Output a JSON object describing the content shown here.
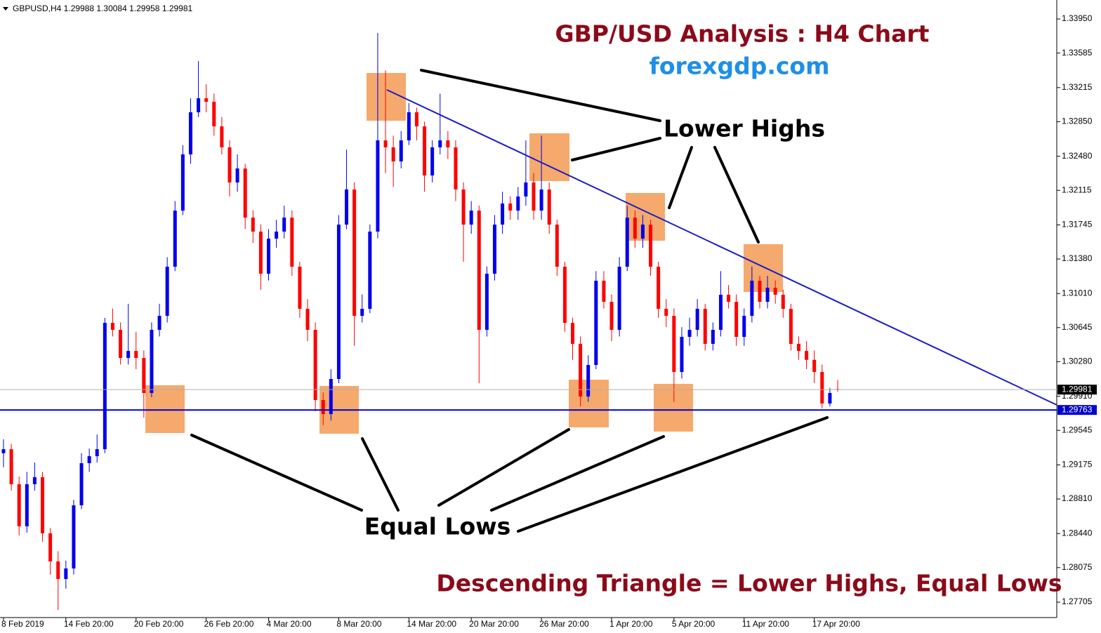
{
  "chart_data": {
    "type": "candlestick",
    "header": "GBPUSD,H4  1.29988 1.30084 1.29958 1.29981",
    "title": "GBP/USD Analysis : H4 Chart",
    "subtitle": "forexgdp.com",
    "annotations": [
      "Lower Highs",
      "Equal Lows",
      "Descending Triangle = Lower Highs, Equal Lows"
    ],
    "up_color": "#0000ee",
    "down_color": "#ff0000",
    "categories": [
      "8 Feb 2019",
      null,
      null,
      null,
      null,
      null,
      null,
      null,
      "14 Feb 20:00",
      null,
      null,
      null,
      null,
      null,
      null,
      null,
      null,
      "20 Feb 20:00",
      null,
      null,
      null,
      null,
      null,
      null,
      null,
      null,
      "26 Feb 20:00",
      null,
      null,
      null,
      null,
      null,
      null,
      null,
      "4 Mar 20:00",
      null,
      null,
      null,
      null,
      null,
      null,
      null,
      null,
      "8 Mar 20:00",
      null,
      null,
      null,
      null,
      null,
      null,
      null,
      null,
      "14 Mar 20:00",
      null,
      null,
      null,
      null,
      null,
      null,
      null,
      "20 Mar 20:00",
      null,
      null,
      null,
      null,
      null,
      null,
      null,
      null,
      "26 Mar 20:00",
      null,
      null,
      null,
      null,
      null,
      null,
      null,
      null,
      "1 Apr 20:00",
      null,
      null,
      null,
      null,
      null,
      null,
      null,
      "5 Apr 20:00",
      null,
      null,
      null,
      null,
      null,
      null,
      null,
      null,
      "11 Apr 20:00",
      null,
      null,
      null,
      null,
      null,
      null,
      null,
      null,
      "17 Apr 20:00",
      null,
      null,
      null
    ],
    "open": [
      1.293,
      1.29343,
      1.28968,
      1.28517,
      1.28968,
      1.29043,
      1.28442,
      1.28141,
      1.27953,
      1.28066,
      1.28742,
      1.29193,
      1.29268,
      1.29343,
      1.30696,
      1.30621,
      1.3032,
      1.30395,
      1.3032,
      1.29945,
      1.30621,
      1.30771,
      1.31297,
      1.31898,
      1.325,
      1.32951,
      1.33101,
      1.33063,
      1.328,
      1.32575,
      1.32199,
      1.32349,
      1.31823,
      1.31673,
      1.31222,
      1.31598,
      1.31673,
      1.31823,
      1.31297,
      1.30846,
      1.30621,
      1.29869,
      1.29719,
      1.30095,
      1.31748,
      1.32124,
      1.30771,
      1.30846,
      1.31673,
      1.3265,
      1.32575,
      1.32424,
      1.3265,
      1.32951,
      1.328,
      1.32274,
      1.32575,
      1.3265,
      1.32575,
      1.32124,
      1.31748,
      1.31898,
      1.30621,
      1.31222,
      1.31748,
      1.31974,
      1.31898,
      1.32049,
      1.32199,
      1.31898,
      1.32124,
      1.31748,
      1.31297,
      1.30696,
      1.30471,
      1.29907,
      1.30245,
      1.31147,
      1.30921,
      1.30621,
      1.31297,
      1.31823,
      1.31598,
      1.31748,
      1.31297,
      1.30846,
      1.30771,
      1.3017,
      1.30546,
      1.30621,
      1.30846,
      1.30471,
      1.30621,
      1.30997,
      1.30921,
      1.30546,
      1.30771,
      1.31147,
      1.30921,
      1.31072,
      1.30997,
      1.30846,
      1.30471,
      1.30395,
      1.303,
      1.3017,
      1.29832,
      1.29988
    ],
    "high": [
      1.2945,
      1.294,
      1.2905,
      1.291,
      1.292,
      1.291,
      1.285,
      1.2825,
      1.2815,
      1.288,
      1.293,
      1.2935,
      1.295,
      1.3075,
      1.3085,
      1.307,
      1.309,
      1.306,
      1.304,
      1.307,
      1.309,
      1.314,
      1.32,
      1.326,
      1.331,
      1.335,
      1.3325,
      1.3315,
      1.329,
      1.3265,
      1.325,
      1.324,
      1.319,
      1.3175,
      1.317,
      1.318,
      1.3195,
      1.319,
      1.3135,
      1.3095,
      1.307,
      1.2995,
      1.302,
      1.3185,
      1.3255,
      1.322,
      1.31,
      1.3175,
      1.338,
      1.334,
      1.327,
      1.3275,
      1.3305,
      1.33,
      1.3285,
      1.3265,
      1.3315,
      1.3275,
      1.3265,
      1.322,
      1.32,
      1.3195,
      1.313,
      1.3185,
      1.321,
      1.3205,
      1.3215,
      1.3265,
      1.323,
      1.327,
      1.322,
      1.318,
      1.3135,
      1.3075,
      1.3055,
      1.3035,
      1.3125,
      1.3125,
      1.31,
      1.314,
      1.3195,
      1.319,
      1.3185,
      1.318,
      1.3135,
      1.3095,
      1.3085,
      1.3065,
      1.3075,
      1.3095,
      1.309,
      1.307,
      1.3125,
      1.311,
      1.31,
      1.3085,
      1.313,
      1.312,
      1.312,
      1.3115,
      1.3105,
      1.309,
      1.3055,
      1.305,
      1.304,
      1.3025,
      1.3,
      1.30084
    ],
    "low": [
      1.2915,
      1.289,
      1.2842,
      1.2845,
      1.289,
      1.2835,
      1.28,
      1.2762,
      1.2785,
      1.28,
      1.287,
      1.291,
      1.292,
      1.293,
      1.3055,
      1.3025,
      1.3025,
      1.302,
      1.2968,
      1.299,
      1.3055,
      1.307,
      1.3125,
      1.3185,
      1.324,
      1.329,
      1.3295,
      1.327,
      1.325,
      1.3205,
      1.321,
      1.317,
      1.3155,
      1.3105,
      1.3115,
      1.315,
      1.316,
      1.312,
      1.3075,
      1.305,
      1.2975,
      1.296,
      1.2965,
      1.3005,
      1.317,
      1.3045,
      1.307,
      1.308,
      1.316,
      1.323,
      1.3215,
      1.3235,
      1.326,
      1.3265,
      1.321,
      1.322,
      1.325,
      1.3245,
      1.32,
      1.3135,
      1.3165,
      1.3005,
      1.3055,
      1.3115,
      1.3165,
      1.318,
      1.318,
      1.3195,
      1.318,
      1.318,
      1.3165,
      1.312,
      1.306,
      1.303,
      1.298,
      1.2985,
      1.302,
      1.3085,
      1.305,
      1.3055,
      1.3125,
      1.315,
      1.315,
      1.312,
      1.3075,
      1.3065,
      1.2985,
      1.301,
      1.3045,
      1.3055,
      1.304,
      1.304,
      1.3055,
      1.3085,
      1.3045,
      1.3045,
      1.307,
      1.3085,
      1.3085,
      1.309,
      1.3075,
      1.304,
      1.303,
      1.302,
      1.3005,
      1.2978,
      1.298,
      1.29958
    ],
    "close": [
      1.29343,
      1.28968,
      1.28517,
      1.28968,
      1.29043,
      1.28442,
      1.28141,
      1.27953,
      1.28066,
      1.28742,
      1.29193,
      1.29268,
      1.29343,
      1.30696,
      1.30621,
      1.3032,
      1.30395,
      1.3032,
      1.29945,
      1.30621,
      1.30771,
      1.31297,
      1.31898,
      1.325,
      1.32951,
      1.33101,
      1.33063,
      1.328,
      1.32575,
      1.32199,
      1.32349,
      1.31823,
      1.31673,
      1.31222,
      1.31598,
      1.31673,
      1.31823,
      1.31297,
      1.30846,
      1.30621,
      1.29869,
      1.29719,
      1.30095,
      1.31748,
      1.32124,
      1.30771,
      1.30846,
      1.31673,
      1.3265,
      1.32575,
      1.32424,
      1.3265,
      1.32951,
      1.328,
      1.32274,
      1.32575,
      1.3265,
      1.32575,
      1.32124,
      1.31748,
      1.31898,
      1.30621,
      1.31222,
      1.31748,
      1.31974,
      1.31898,
      1.32049,
      1.32199,
      1.31898,
      1.32124,
      1.31748,
      1.31297,
      1.30696,
      1.30471,
      1.29907,
      1.30245,
      1.31147,
      1.30921,
      1.30621,
      1.31297,
      1.31823,
      1.31598,
      1.31748,
      1.31297,
      1.30846,
      1.30771,
      1.3017,
      1.30546,
      1.30621,
      1.30846,
      1.30471,
      1.30621,
      1.30997,
      1.30921,
      1.30546,
      1.30771,
      1.31147,
      1.30921,
      1.31072,
      1.30997,
      1.30846,
      1.30471,
      1.30395,
      1.303,
      1.3017,
      1.29832,
      1.29945,
      1.29981
    ],
    "ylim": [
      1.2754,
      1.34093
    ],
    "yticks": [
      {
        "value": 1.3395,
        "label": "1.33950"
      },
      1.33585,
      1.33215,
      {
        "value": 1.3285,
        "label": "1.32850"
      },
      {
        "value": 1.3248,
        "label": "1.32480"
      },
      1.32115,
      1.31745,
      {
        "value": 1.3138,
        "label": "1.31380"
      },
      {
        "value": 1.3101,
        "label": "1.31010"
      },
      1.30645,
      {
        "value": 1.3028,
        "label": "1.30280"
      },
      {
        "value": 1.2991,
        "label": "1.29910"
      },
      1.29545,
      1.29175,
      {
        "value": 1.2881,
        "label": "1.28810"
      },
      {
        "value": 1.2844,
        "label": "1.28440"
      },
      1.28075,
      1.27705
    ],
    "price_lines": [
      {
        "value": 1.29981,
        "color": "#b0b0b0",
        "label_color": "#000000"
      },
      {
        "value": 1.29763,
        "color": "#0000cc",
        "label_color": "#0000cc"
      }
    ]
  }
}
